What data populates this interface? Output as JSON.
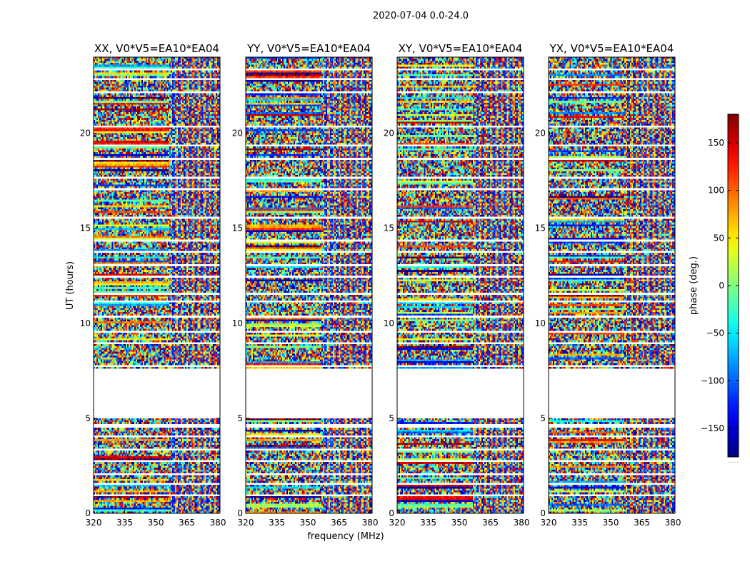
{
  "chart_data": {
    "type": "heatmap",
    "suptitle": "2020-07-04 0.0-24.0",
    "xlabel": "frequency (MHz)",
    "ylabel": "UT (hours)",
    "xlim": [
      320,
      381
    ],
    "ylim": [
      0,
      24
    ],
    "xticks": [
      320,
      335,
      350,
      365,
      380
    ],
    "yticks": [
      0,
      5,
      10,
      15,
      20
    ],
    "panels": [
      {
        "title": "XX, V0*V5=EA10*EA04"
      },
      {
        "title": "YY, V0*V5=EA10*EA04"
      },
      {
        "title": "XY, V0*V5=EA10*EA04"
      },
      {
        "title": "YX, V0*V5=EA10*EA04"
      }
    ],
    "colorbar": {
      "label": "phase (deg.)",
      "colormap": "jet",
      "range": [
        -180,
        180
      ],
      "ticks": [
        -150,
        -100,
        -50,
        0,
        50,
        100,
        150
      ],
      "tick_labels": [
        "−150",
        "−100",
        "−50",
        "0",
        "50",
        "100",
        "150"
      ]
    },
    "data_gaps_hours": [
      [
        5.0,
        7.6
      ]
    ],
    "bottom_note": "......"
  }
}
